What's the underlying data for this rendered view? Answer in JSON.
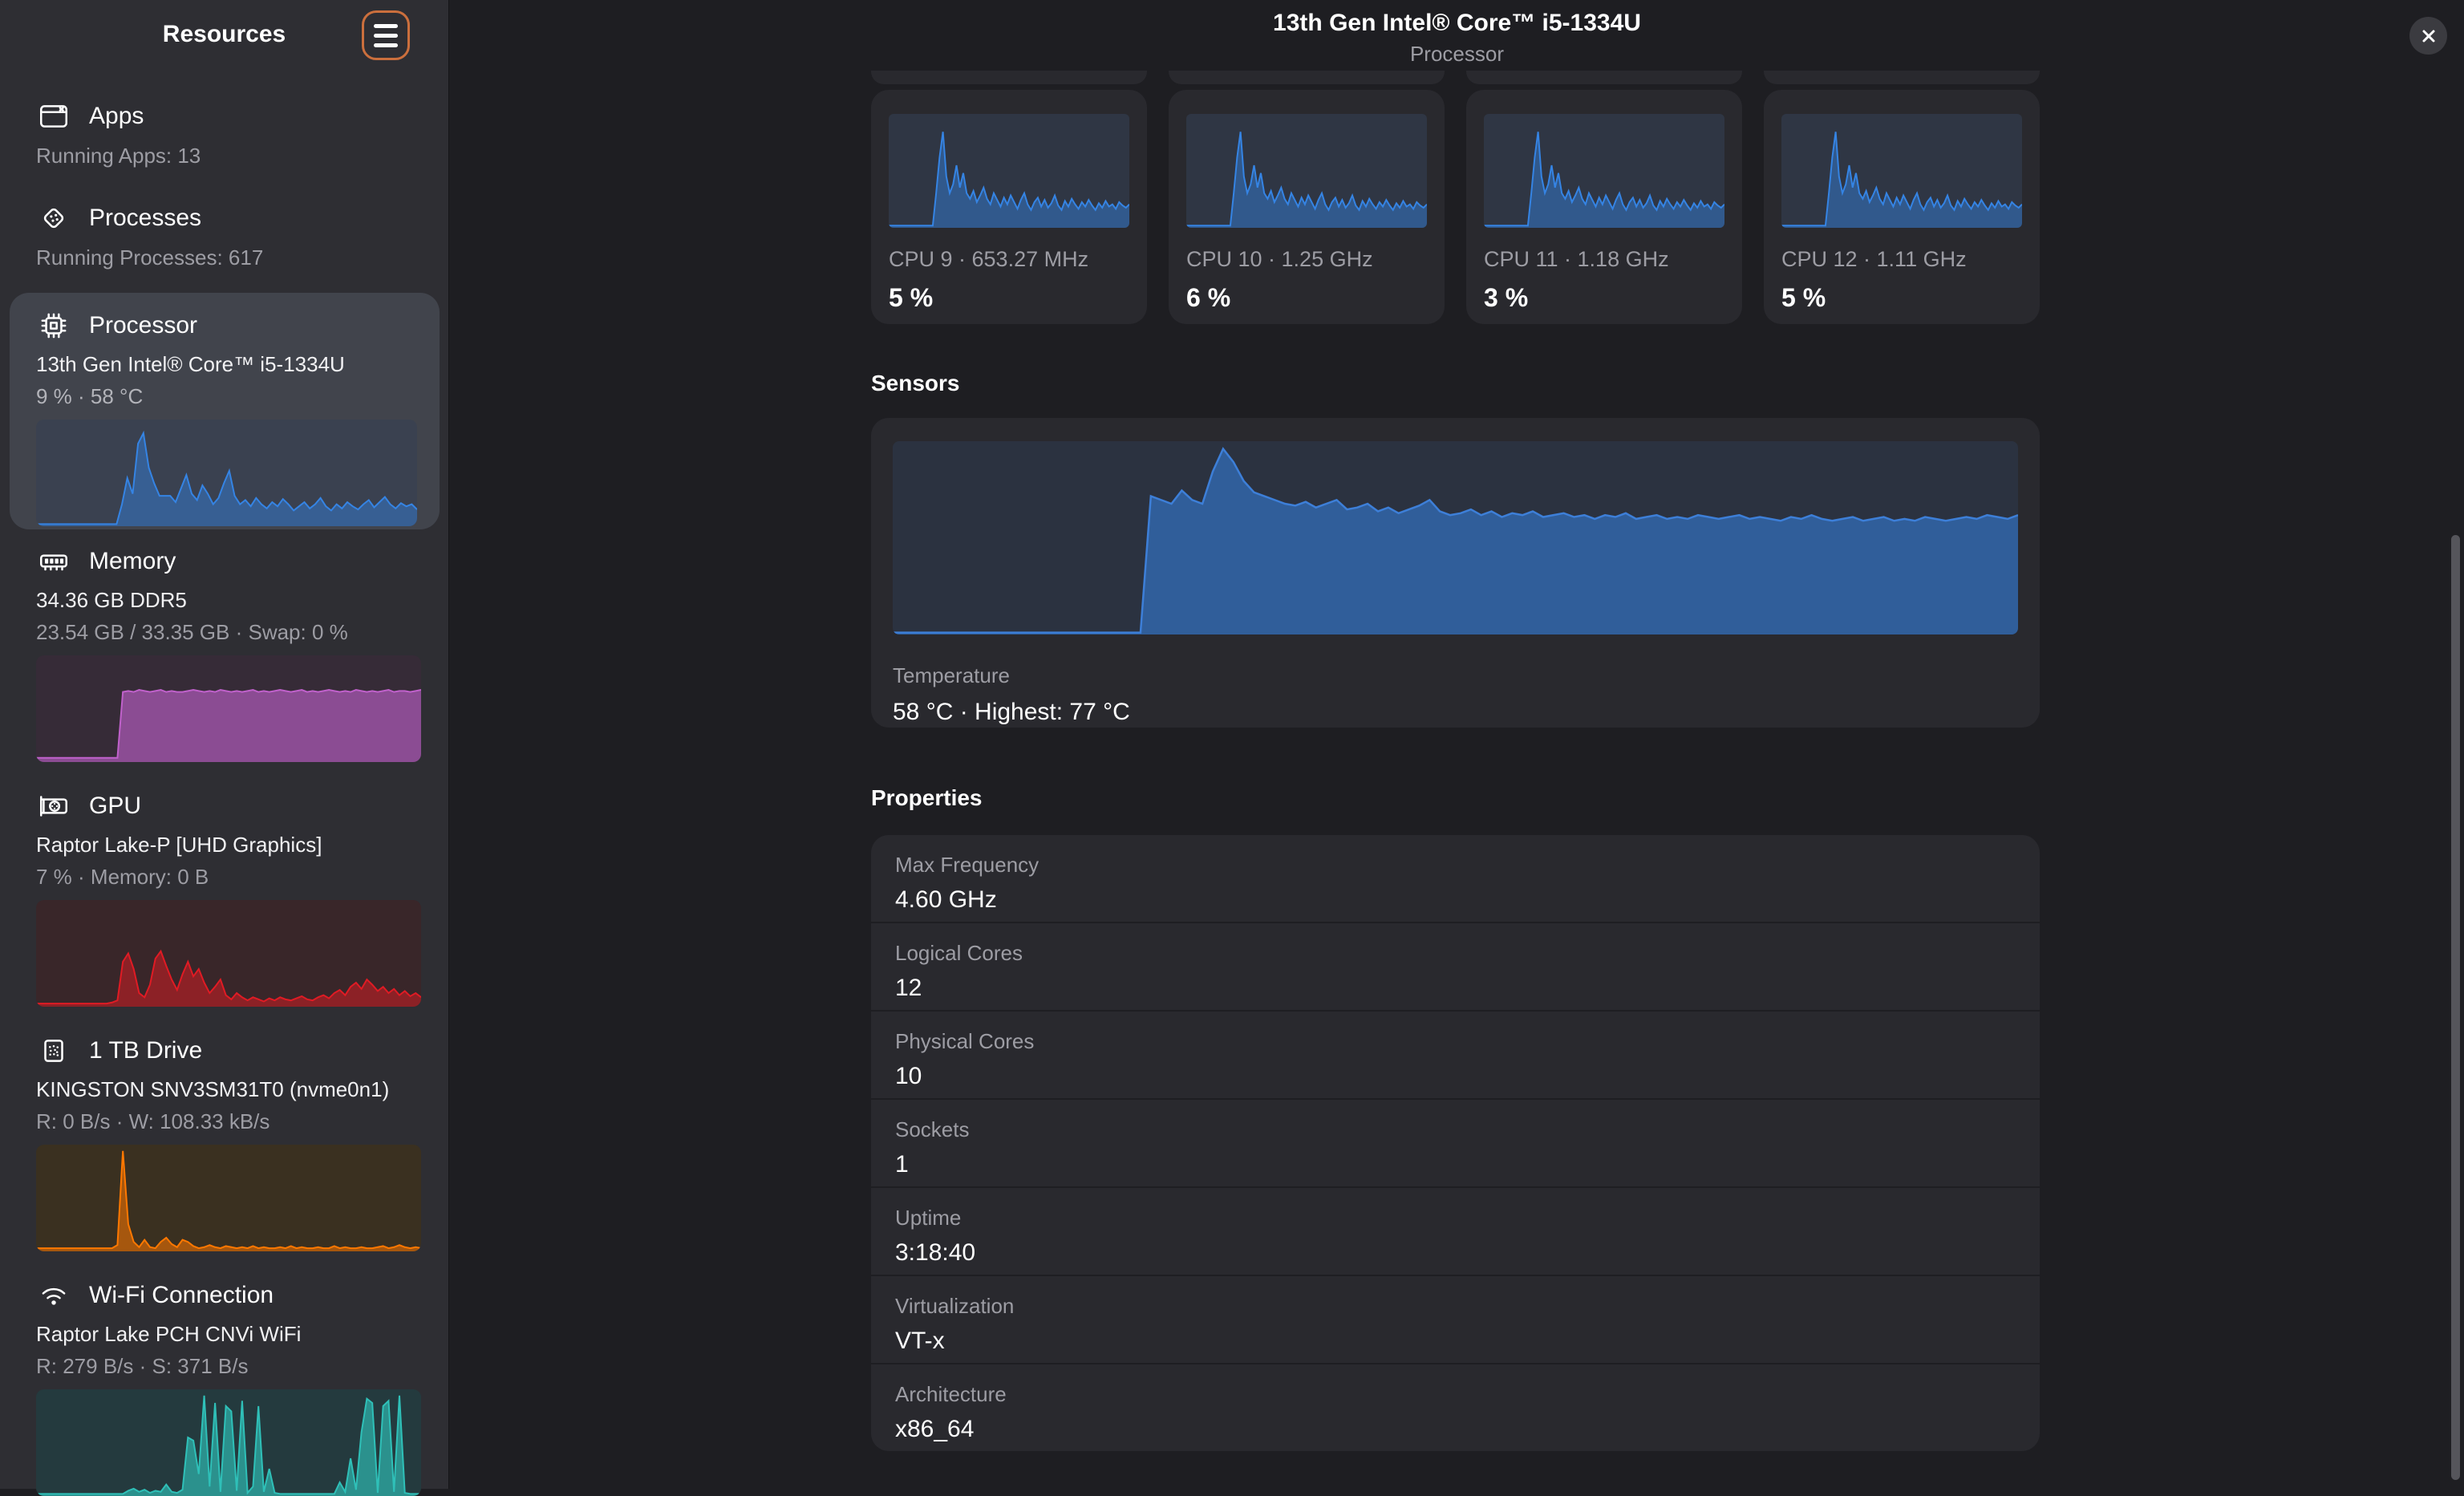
{
  "window": {
    "title": "13th Gen Intel® Core™ i5-1334U",
    "subtitle": "Processor"
  },
  "sidebar": {
    "title": "Resources",
    "items": [
      {
        "id": "apps",
        "label": "Apps",
        "line3": "Running Apps: 13",
        "icon": "apps-window-icon"
      },
      {
        "id": "processes",
        "label": "Processes",
        "line3": "Running Processes: 617",
        "icon": "processes-icon"
      },
      {
        "id": "processor",
        "label": "Processor",
        "line2": "13th Gen Intel® Core™ i5-1334U",
        "line3": "9 % · 58 °C",
        "icon": "cpu-icon",
        "selected": true
      },
      {
        "id": "memory",
        "label": "Memory",
        "line2": "34.36 GB DDR5",
        "line3": "23.54 GB / 33.35 GB · Swap: 0 %",
        "icon": "memory-icon"
      },
      {
        "id": "gpu",
        "label": "GPU",
        "line2": "Raptor Lake-P [UHD Graphics]",
        "line3": "7 % · Memory: 0 B",
        "icon": "gpu-icon"
      },
      {
        "id": "drive",
        "label": "1 TB Drive",
        "line2": "KINGSTON SNV3SM31T0 (nvme0n1)",
        "line3": "R: 0 B/s · W: 108.33 kB/s",
        "icon": "ssd-icon"
      },
      {
        "id": "wifi",
        "label": "Wi-Fi Connection",
        "line2": "Raptor Lake PCH CNVi WiFi",
        "line3": "R: 279 B/s · S: 371 B/s",
        "icon": "wifi-icon"
      }
    ]
  },
  "main": {
    "cpu_cards": [
      {
        "label": "CPU 9 · 653.27 MHz",
        "value": "5 %"
      },
      {
        "label": "CPU 10 · 1.25 GHz",
        "value": "6 %"
      },
      {
        "label": "CPU 11 · 1.18 GHz",
        "value": "3 %"
      },
      {
        "label": "CPU 12 · 1.11 GHz",
        "value": "5 %"
      }
    ],
    "sensors": {
      "heading": "Sensors",
      "label": "Temperature",
      "value": "58 °C · Highest: 77 °C"
    },
    "properties": {
      "heading": "Properties",
      "rows": [
        {
          "label": "Max Frequency",
          "value": "4.60 GHz"
        },
        {
          "label": "Logical Cores",
          "value": "12"
        },
        {
          "label": "Physical Cores",
          "value": "10"
        },
        {
          "label": "Sockets",
          "value": "1"
        },
        {
          "label": "Uptime",
          "value": "3:18:40"
        },
        {
          "label": "Virtualization",
          "value": "VT-x"
        },
        {
          "label": "Architecture",
          "value": "x86_64"
        }
      ]
    }
  },
  "icons": {
    "menu": "hamburger-icon",
    "close": "close-icon",
    "apps": "apps-window-icon",
    "processes": "processes-icon",
    "processor": "cpu-icon",
    "memory": "memory-icon",
    "gpu": "gpu-icon",
    "drive": "ssd-icon",
    "network": "wifi-icon"
  },
  "colors": {
    "background": "#1e1e22",
    "sidebar": "#2e2e33",
    "card": "#29292e",
    "selected_item": "#41444c",
    "accent_focus_ring": "#cb6f3d",
    "cpu_blue": "#3584e4",
    "memory_purple": "#c061cb",
    "gpu_red": "#e01b24",
    "disk_orange": "#ff7800",
    "network_teal": "#2fc0b8",
    "text_dim": "#9d9da4"
  },
  "chart_data": [
    {
      "id": "sidebar_processor",
      "type": "area",
      "title": "Processor usage history (selected item)",
      "color": "#3584e4",
      "fill": "rgba(53,132,228,0.45)",
      "bg": "#3a4150",
      "stroke": 2,
      "ymax": 100,
      "values": [
        1,
        1,
        1,
        1,
        1,
        1,
        1,
        1,
        1,
        1,
        1,
        1,
        1,
        1,
        1,
        1,
        20,
        45,
        30,
        78,
        88,
        55,
        40,
        28,
        28,
        28,
        22,
        35,
        48,
        30,
        24,
        38,
        30,
        20,
        26,
        40,
        52,
        28,
        20,
        24,
        18,
        26,
        20,
        16,
        22,
        18,
        25,
        20,
        14,
        18,
        22,
        16,
        20,
        26,
        18,
        14,
        20,
        16,
        22,
        18,
        15,
        20,
        24,
        17,
        22,
        27,
        20,
        16,
        21,
        18,
        20,
        15
      ]
    },
    {
      "id": "sidebar_memory",
      "type": "area",
      "title": "Memory usage history",
      "color": "#c061cb",
      "fill": "rgba(192,97,203,0.62)",
      "bg": "#362b37",
      "stroke": 2,
      "ymax": 100,
      "values": [
        3,
        3,
        3,
        3,
        3,
        3,
        3,
        3,
        3,
        3,
        3,
        3,
        3,
        3,
        3,
        3,
        66,
        67,
        66,
        68,
        67,
        66,
        67,
        68,
        66,
        67,
        66,
        66,
        67,
        68,
        67,
        66,
        67,
        66,
        68,
        67,
        66,
        67,
        66,
        67,
        68,
        66,
        67,
        66,
        67,
        68,
        67,
        66,
        67,
        68,
        66,
        67,
        66,
        67,
        68,
        67,
        66,
        67,
        66,
        68,
        67,
        66,
        67,
        66,
        67,
        68,
        66,
        67,
        67,
        66,
        67,
        68
      ]
    },
    {
      "id": "sidebar_gpu",
      "type": "area",
      "title": "GPU usage history",
      "color": "#e01b24",
      "fill": "rgba(224,27,36,0.5)",
      "bg": "#392629",
      "stroke": 2,
      "ymax": 100,
      "values": [
        2,
        2,
        2,
        2,
        2,
        2,
        2,
        2,
        2,
        2,
        2,
        2,
        2,
        2,
        3,
        5,
        42,
        50,
        35,
        12,
        8,
        20,
        45,
        52,
        38,
        25,
        15,
        30,
        42,
        28,
        35,
        22,
        12,
        18,
        25,
        10,
        6,
        12,
        8,
        5,
        8,
        6,
        4,
        7,
        5,
        8,
        6,
        5,
        7,
        9,
        6,
        5,
        8,
        10,
        7,
        12,
        15,
        10,
        18,
        22,
        16,
        25,
        20,
        14,
        18,
        12,
        16,
        10,
        14,
        9,
        12,
        8
      ]
    },
    {
      "id": "sidebar_disk",
      "type": "area",
      "title": "Drive activity history",
      "color": "#ff7800",
      "fill": "rgba(255,120,0,0.55)",
      "bg": "#3a3020",
      "stroke": 2,
      "ymax": 100,
      "values": [
        2,
        2,
        2,
        2,
        2,
        2,
        2,
        2,
        2,
        2,
        2,
        2,
        2,
        2,
        2,
        5,
        95,
        25,
        8,
        3,
        10,
        3,
        2,
        8,
        12,
        6,
        3,
        10,
        8,
        4,
        2,
        3,
        5,
        3,
        2,
        4,
        3,
        2,
        3,
        2,
        4,
        2,
        3,
        2,
        2,
        3,
        2,
        4,
        2,
        3,
        2,
        2,
        3,
        2,
        2,
        4,
        2,
        3,
        2,
        2,
        3,
        2,
        2,
        3,
        4,
        2,
        3,
        5,
        3,
        2,
        3,
        2
      ]
    },
    {
      "id": "sidebar_wifi",
      "type": "area",
      "title": "Wi-Fi throughput history",
      "color": "#2fc0b8",
      "fill": "rgba(47,192,184,0.65)",
      "bg": "#243a3e",
      "stroke": 2,
      "ymax": 100,
      "values": [
        1,
        1,
        1,
        1,
        1,
        1,
        1,
        1,
        1,
        1,
        1,
        1,
        1,
        1,
        1,
        1,
        1,
        4,
        6,
        3,
        5,
        2,
        4,
        3,
        10,
        3,
        2,
        5,
        55,
        52,
        20,
        95,
        8,
        88,
        3,
        85,
        80,
        4,
        90,
        2,
        8,
        85,
        3,
        25,
        2,
        1,
        1,
        1,
        1,
        1,
        1,
        1,
        1,
        1,
        1,
        1,
        12,
        3,
        35,
        5,
        60,
        92,
        88,
        2,
        85,
        90,
        3,
        95,
        2,
        1,
        1,
        1
      ]
    },
    {
      "id": "cpu_core",
      "type": "area",
      "title": "Per-core usage history (shared by CPU 9–12 cards)",
      "color": "#3584e4",
      "fill": "rgba(53,132,228,0.45)",
      "bg": "#2f3644",
      "stroke": 2,
      "ymax": 100,
      "values": [
        1,
        1,
        1,
        1,
        1,
        1,
        1,
        1,
        1,
        1,
        1,
        1,
        1,
        1,
        30,
        62,
        85,
        45,
        30,
        38,
        55,
        35,
        48,
        30,
        25,
        32,
        22,
        28,
        35,
        25,
        20,
        30,
        24,
        18,
        26,
        20,
        28,
        22,
        16,
        24,
        30,
        20,
        15,
        22,
        26,
        18,
        24,
        17,
        21,
        28,
        19,
        15,
        23,
        18,
        25,
        20,
        16,
        22,
        18,
        24,
        19,
        15,
        21,
        17,
        23,
        18,
        20,
        16,
        22,
        19,
        17,
        20
      ]
    },
    {
      "id": "temperature",
      "type": "area",
      "title": "Temperature history (°C, as % of chart height)",
      "color": "#3d7fd8",
      "fill": "rgba(53,132,228,0.55)",
      "bg": "#2b3240",
      "stroke": 2.5,
      "ymax": 100,
      "values": [
        0,
        0,
        0,
        0,
        0,
        0,
        0,
        0,
        0,
        0,
        0,
        0,
        0,
        0,
        0,
        0,
        0,
        0,
        0,
        0,
        0,
        0,
        0,
        0,
        0,
        72,
        70,
        68,
        75,
        70,
        68,
        85,
        97,
        90,
        80,
        74,
        72,
        70,
        68,
        67,
        69,
        66,
        68,
        70,
        65,
        66,
        68,
        64,
        66,
        63,
        65,
        67,
        70,
        64,
        62,
        63,
        65,
        62,
        64,
        61,
        63,
        62,
        64,
        61,
        62,
        63,
        61,
        62,
        60,
        62,
        61,
        63,
        60,
        61,
        62,
        60,
        61,
        60,
        62,
        61,
        60,
        61,
        62,
        60,
        61,
        60,
        59,
        61,
        60,
        62,
        60,
        59,
        60,
        61,
        59,
        60,
        61,
        59,
        60,
        59,
        61,
        60,
        59,
        60,
        61,
        60,
        62,
        61,
        60,
        62
      ]
    }
  ]
}
